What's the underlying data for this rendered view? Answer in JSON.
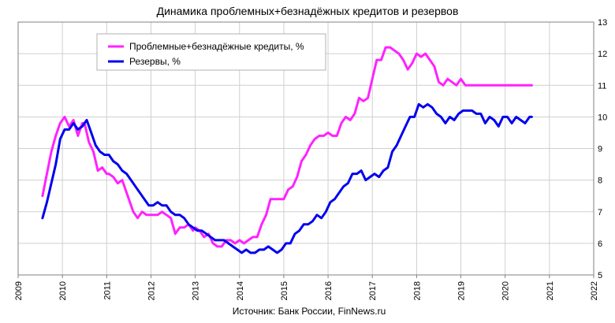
{
  "chart_data": {
    "type": "line",
    "title": "Динамика  проблемных+безнадёжных кредитов и  резервов",
    "source": "Источник: Банк России, FinNews.ru",
    "xlim": [
      2009,
      2022
    ],
    "ylim": [
      5,
      13
    ],
    "x_ticks": [
      "2009",
      "2010",
      "2011",
      "2012",
      "2013",
      "2014",
      "2015",
      "2016",
      "2017",
      "2018",
      "2019",
      "2020",
      "2021",
      "2022"
    ],
    "y_ticks": [
      "5",
      "6",
      "7",
      "8",
      "9",
      "10",
      "11",
      "12",
      "13"
    ],
    "grid": true,
    "legend_position": "top-left",
    "series": [
      {
        "name": "Проблемные+безнадёжные кредиты, %",
        "color": "#ff22ff",
        "x": [
          2009.55,
          2009.65,
          2009.75,
          2009.85,
          2009.95,
          2010.05,
          2010.15,
          2010.25,
          2010.35,
          2010.45,
          2010.5,
          2010.6,
          2010.7,
          2010.8,
          2010.9,
          2011.0,
          2011.05,
          2011.15,
          2011.25,
          2011.35,
          2011.5,
          2011.6,
          2011.7,
          2011.8,
          2011.9,
          2012.0,
          2012.05,
          2012.15,
          2012.25,
          2012.35,
          2012.45,
          2012.55,
          2012.65,
          2012.75,
          2012.85,
          2012.95,
          2013.0,
          2013.1,
          2013.2,
          2013.3,
          2013.4,
          2013.5,
          2013.6,
          2013.7,
          2013.8,
          2013.9,
          2014.0,
          2014.1,
          2014.2,
          2014.3,
          2014.4,
          2014.5,
          2014.6,
          2014.7,
          2014.8,
          2014.9,
          2015.0,
          2015.1,
          2015.2,
          2015.3,
          2015.4,
          2015.5,
          2015.6,
          2015.7,
          2015.8,
          2015.9,
          2016.0,
          2016.1,
          2016.2,
          2016.3,
          2016.4,
          2016.5,
          2016.6,
          2016.7,
          2016.8,
          2016.9,
          2017.0,
          2017.1,
          2017.2,
          2017.3,
          2017.4,
          2017.5,
          2017.6,
          2017.7,
          2017.8,
          2017.9,
          2018.0,
          2018.1,
          2018.2,
          2018.3,
          2018.4,
          2018.5,
          2018.6,
          2018.7,
          2018.8,
          2018.9,
          2019.0,
          2019.1,
          2019.2,
          2019.3,
          2019.4,
          2019.5,
          2019.6,
          2019.7,
          2019.8,
          2019.9,
          2020.0,
          2020.1,
          2020.2,
          2020.3,
          2020.4,
          2020.5,
          2020.6
        ],
        "values": [
          7.5,
          8.2,
          8.9,
          9.4,
          9.8,
          10.0,
          9.7,
          9.9,
          9.4,
          9.8,
          9.8,
          9.2,
          8.9,
          8.3,
          8.4,
          8.2,
          8.2,
          8.1,
          7.9,
          8.0,
          7.4,
          7.0,
          6.8,
          7.0,
          6.9,
          6.9,
          6.9,
          6.9,
          7.0,
          6.9,
          6.8,
          6.3,
          6.5,
          6.5,
          6.6,
          6.4,
          6.5,
          6.4,
          6.2,
          6.3,
          6.0,
          5.9,
          5.9,
          6.1,
          6.1,
          6.0,
          6.1,
          6.0,
          6.1,
          6.2,
          6.2,
          6.6,
          6.9,
          7.4,
          7.4,
          7.4,
          7.4,
          7.7,
          7.8,
          8.1,
          8.6,
          8.8,
          9.1,
          9.3,
          9.4,
          9.4,
          9.5,
          9.4,
          9.4,
          9.8,
          10.0,
          9.9,
          10.1,
          10.6,
          10.5,
          10.6,
          11.2,
          11.8,
          11.8,
          12.2,
          12.2,
          12.1,
          12.0,
          11.8,
          11.5,
          11.7,
          12.0,
          11.9,
          12.0,
          11.8,
          11.6,
          11.1,
          11.0,
          11.2,
          11.1,
          11.0,
          11.2,
          11.0,
          11.0,
          11.0,
          11.0,
          11.0,
          11.0,
          11.0,
          11.0,
          11.0,
          11.0,
          11.0,
          11.0,
          11.0,
          11.0,
          11.0,
          11.0
        ]
      },
      {
        "name": "Резервы, %",
        "color": "#0000ee",
        "x": [
          2009.55,
          2009.65,
          2009.75,
          2009.85,
          2009.95,
          2010.05,
          2010.15,
          2010.25,
          2010.35,
          2010.45,
          2010.55,
          2010.65,
          2010.75,
          2010.85,
          2010.95,
          2011.05,
          2011.15,
          2011.25,
          2011.35,
          2011.45,
          2011.55,
          2011.65,
          2011.75,
          2011.85,
          2011.95,
          2012.05,
          2012.15,
          2012.25,
          2012.35,
          2012.45,
          2012.55,
          2012.65,
          2012.75,
          2012.85,
          2012.95,
          2013.05,
          2013.15,
          2013.25,
          2013.35,
          2013.45,
          2013.55,
          2013.65,
          2013.75,
          2013.85,
          2013.95,
          2014.05,
          2014.15,
          2014.25,
          2014.35,
          2014.45,
          2014.55,
          2014.65,
          2014.75,
          2014.85,
          2014.95,
          2015.05,
          2015.15,
          2015.25,
          2015.35,
          2015.45,
          2015.55,
          2015.65,
          2015.75,
          2015.85,
          2015.95,
          2016.05,
          2016.15,
          2016.25,
          2016.35,
          2016.45,
          2016.55,
          2016.65,
          2016.75,
          2016.85,
          2016.95,
          2017.05,
          2017.15,
          2017.25,
          2017.35,
          2017.45,
          2017.55,
          2017.65,
          2017.75,
          2017.85,
          2017.95,
          2018.05,
          2018.15,
          2018.25,
          2018.35,
          2018.45,
          2018.55,
          2018.65,
          2018.75,
          2018.85,
          2018.95,
          2019.05,
          2019.15,
          2019.25,
          2019.35,
          2019.45,
          2019.55,
          2019.65,
          2019.75,
          2019.85,
          2019.95,
          2020.05,
          2020.15,
          2020.25,
          2020.35,
          2020.45,
          2020.55,
          2020.6
        ],
        "values": [
          6.8,
          7.3,
          7.9,
          8.5,
          9.3,
          9.6,
          9.6,
          9.8,
          9.6,
          9.7,
          9.9,
          9.5,
          9.1,
          8.9,
          8.8,
          8.8,
          8.6,
          8.5,
          8.3,
          8.2,
          8.0,
          7.8,
          7.6,
          7.4,
          7.2,
          7.2,
          7.3,
          7.2,
          7.2,
          7.0,
          6.9,
          6.9,
          6.8,
          6.6,
          6.5,
          6.4,
          6.4,
          6.3,
          6.2,
          6.1,
          6.1,
          6.1,
          6.0,
          5.9,
          5.8,
          5.7,
          5.8,
          5.7,
          5.7,
          5.8,
          5.8,
          5.9,
          5.8,
          5.7,
          5.8,
          6.0,
          6.0,
          6.3,
          6.4,
          6.6,
          6.6,
          6.7,
          6.9,
          6.8,
          7.0,
          7.3,
          7.4,
          7.6,
          7.8,
          7.9,
          8.2,
          8.2,
          8.3,
          8.0,
          8.1,
          8.2,
          8.1,
          8.3,
          8.4,
          8.9,
          9.1,
          9.4,
          9.7,
          10.0,
          10.0,
          10.4,
          10.3,
          10.4,
          10.3,
          10.1,
          10.0,
          9.8,
          10.0,
          9.9,
          10.1,
          10.2,
          10.2,
          10.2,
          10.1,
          10.1,
          9.8,
          10.0,
          9.9,
          9.7,
          10.0,
          10.0,
          9.8,
          10.0,
          9.9,
          9.8,
          10.0,
          10.0
        ]
      }
    ]
  }
}
